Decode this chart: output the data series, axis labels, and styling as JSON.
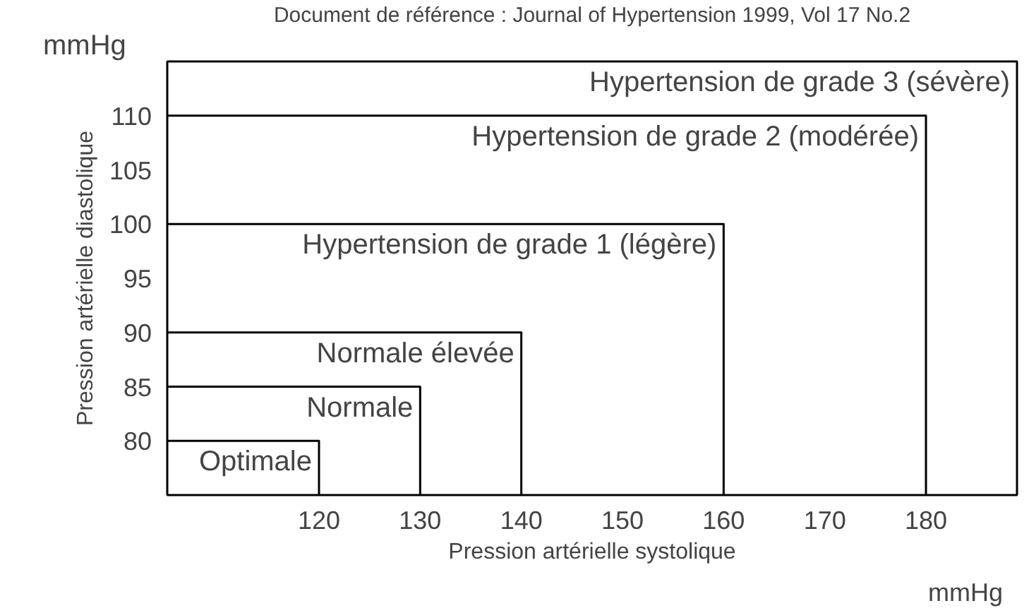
{
  "chart_data": {
    "type": "line",
    "title": "Document de référence : Journal of Hypertension 1999, Vol 17 No.2",
    "xlabel": "Pression artérielle systolique",
    "ylabel": "Pression artérielle diastolique",
    "annotations": [
      "mmHg",
      "mmHg",
      "Hypertension de grade 3 (sévère)"
    ],
    "series": [
      {
        "name": "Optimale",
        "color": "#000000",
        "x": [
          105,
          120,
          120
        ],
        "values": [
          80,
          80,
          75
        ]
      },
      {
        "name": "Normale",
        "color": "#000000",
        "x": [
          105,
          130,
          130
        ],
        "values": [
          85,
          85,
          75
        ]
      },
      {
        "name": "Normale élevée",
        "color": "#000000",
        "x": [
          105,
          140,
          140
        ],
        "values": [
          90,
          90,
          75
        ]
      },
      {
        "name": "Hypertension de grade 1 (légère)",
        "color": "#000000",
        "x": [
          105,
          160,
          160
        ],
        "values": [
          100,
          100,
          75
        ]
      },
      {
        "name": "Hypertension de grade 2 (modérée)",
        "color": "#000000",
        "x": [
          105,
          180,
          180
        ],
        "values": [
          110,
          110,
          75
        ]
      }
    ],
    "xlim": [
      105,
      189
    ],
    "ylim": [
      75,
      115
    ],
    "xticks": [
      120,
      130,
      140,
      150,
      160,
      170,
      180
    ],
    "yticks": [
      80,
      85,
      90,
      95,
      100,
      105,
      110
    ],
    "marker": "none",
    "line_style": "solid"
  }
}
